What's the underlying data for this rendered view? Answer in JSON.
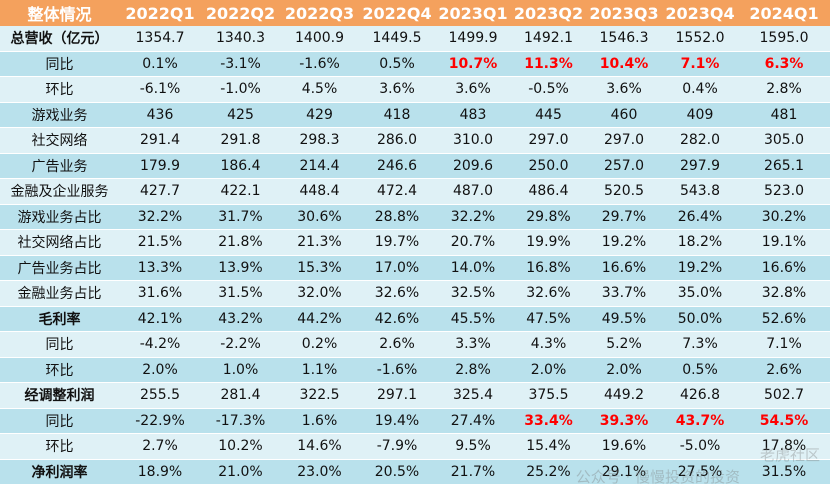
{
  "header": {
    "label": "整体情况",
    "periods": [
      "2022Q1",
      "2022Q2",
      "2022Q3",
      "2022Q4",
      "2023Q1",
      "2023Q2",
      "2023Q3",
      "2023Q4",
      "2024Q1"
    ]
  },
  "rows": [
    {
      "label": "总营收（亿元）",
      "bold": true,
      "values": [
        "1354.7",
        "1340.3",
        "1400.9",
        "1449.5",
        "1499.9",
        "1492.1",
        "1546.3",
        "1552.0",
        "1595.0"
      ]
    },
    {
      "label": "同比",
      "values": [
        "0.1%",
        "-3.1%",
        "-1.6%",
        "0.5%",
        "10.7%",
        "11.3%",
        "10.4%",
        "7.1%",
        "6.3%"
      ],
      "highlight": [
        4,
        5,
        6,
        7,
        8
      ]
    },
    {
      "label": "环比",
      "values": [
        "-6.1%",
        "-1.0%",
        "4.5%",
        "3.6%",
        "3.6%",
        "-0.5%",
        "3.6%",
        "0.4%",
        "2.8%"
      ]
    },
    {
      "label": "游戏业务",
      "values": [
        "436",
        "425",
        "429",
        "418",
        "483",
        "445",
        "460",
        "409",
        "481"
      ]
    },
    {
      "label": "社交网络",
      "values": [
        "291.4",
        "291.8",
        "298.3",
        "286.0",
        "310.0",
        "297.0",
        "297.0",
        "282.0",
        "305.0"
      ]
    },
    {
      "label": "广告业务",
      "values": [
        "179.9",
        "186.4",
        "214.4",
        "246.6",
        "209.6",
        "250.0",
        "257.0",
        "297.9",
        "265.1"
      ]
    },
    {
      "label": "金融及企业服务",
      "values": [
        "427.7",
        "422.1",
        "448.4",
        "472.4",
        "487.0",
        "486.4",
        "520.5",
        "543.8",
        "523.0"
      ]
    },
    {
      "label": "游戏业务占比",
      "values": [
        "32.2%",
        "31.7%",
        "30.6%",
        "28.8%",
        "32.2%",
        "29.8%",
        "29.7%",
        "26.4%",
        "30.2%"
      ]
    },
    {
      "label": "社交网络占比",
      "values": [
        "21.5%",
        "21.8%",
        "21.3%",
        "19.7%",
        "20.7%",
        "19.9%",
        "19.2%",
        "18.2%",
        "19.1%"
      ]
    },
    {
      "label": "广告业务占比",
      "values": [
        "13.3%",
        "13.9%",
        "15.3%",
        "17.0%",
        "14.0%",
        "16.8%",
        "16.6%",
        "19.2%",
        "16.6%"
      ]
    },
    {
      "label": "金融业务占比",
      "values": [
        "31.6%",
        "31.5%",
        "32.0%",
        "32.6%",
        "32.5%",
        "32.6%",
        "33.7%",
        "35.0%",
        "32.8%"
      ]
    },
    {
      "label": "毛利率",
      "bold": true,
      "values": [
        "42.1%",
        "43.2%",
        "44.2%",
        "42.6%",
        "45.5%",
        "47.5%",
        "49.5%",
        "50.0%",
        "52.6%"
      ]
    },
    {
      "label": "同比",
      "values": [
        "-4.2%",
        "-2.2%",
        "0.2%",
        "2.6%",
        "3.3%",
        "4.3%",
        "5.2%",
        "7.3%",
        "7.1%"
      ]
    },
    {
      "label": "环比",
      "values": [
        "2.0%",
        "1.0%",
        "1.1%",
        "-1.6%",
        "2.8%",
        "2.0%",
        "2.0%",
        "0.5%",
        "2.6%"
      ]
    },
    {
      "label": "经调整利润",
      "bold": true,
      "values": [
        "255.5",
        "281.4",
        "322.5",
        "297.1",
        "325.4",
        "375.5",
        "449.2",
        "426.8",
        "502.7"
      ]
    },
    {
      "label": "同比",
      "values": [
        "-22.9%",
        "-17.3%",
        "1.6%",
        "19.4%",
        "27.4%",
        "33.4%",
        "39.3%",
        "43.7%",
        "54.5%"
      ],
      "highlight": [
        5,
        6,
        7,
        8
      ]
    },
    {
      "label": "环比",
      "values": [
        "2.7%",
        "10.2%",
        "14.6%",
        "-7.9%",
        "9.5%",
        "15.4%",
        "19.6%",
        "-5.0%",
        "17.8%"
      ]
    },
    {
      "label": "净利润率",
      "bold": true,
      "values": [
        "18.9%",
        "21.0%",
        "23.0%",
        "20.5%",
        "21.7%",
        "25.2%",
        "29.1%",
        "27.5%",
        "31.5%"
      ]
    }
  ],
  "watermark": {
    "line1": "老虎社区",
    "line2": "公众号 · 慢慢投资的投资"
  }
}
